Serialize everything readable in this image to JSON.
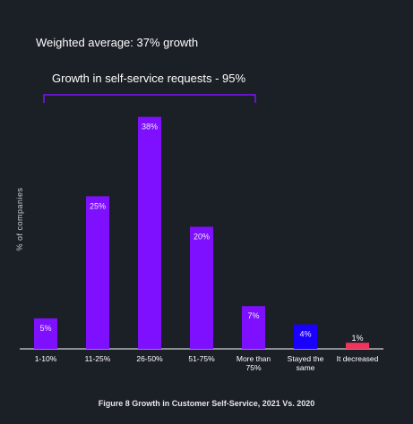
{
  "colors": {
    "background": "#1b1f26",
    "bar_purple": "#7f10ff",
    "bar_blue": "#1a00ff",
    "bar_pink": "#f0345e",
    "bracket": "#7f10ff",
    "text": "#ffffff"
  },
  "annotations": {
    "weighted_average": "Weighted average: 37% growth",
    "growth_requests": "Growth in self-service requests - 95%"
  },
  "caption": "Figure 8 Growth in Customer Self-Service, 2021 Vs. 2020",
  "chart_data": {
    "type": "bar",
    "title": "",
    "xlabel": "",
    "ylabel": "% of companies",
    "ylim": [
      0,
      40
    ],
    "grid": false,
    "categories": [
      "1-10%",
      "11-25%",
      "26-50%",
      "51-75%",
      "More than 75%",
      "Stayed the same",
      "It decreased"
    ],
    "category_lines": [
      [
        "1-10%"
      ],
      [
        "11-25%"
      ],
      [
        "26-50%"
      ],
      [
        "51-75%"
      ],
      [
        "More than",
        "75%"
      ],
      [
        "Stayed the",
        "same"
      ],
      [
        "It decreased"
      ]
    ],
    "values": [
      5,
      25,
      38,
      20,
      7,
      4,
      1
    ],
    "value_labels": [
      "5%",
      "25%",
      "38%",
      "20%",
      "7%",
      "4%",
      "1%"
    ],
    "bar_colors": [
      "#7f10ff",
      "#7f10ff",
      "#7f10ff",
      "#7f10ff",
      "#7f10ff",
      "#1a00ff",
      "#f0345e"
    ],
    "bracket_spans_categories": [
      "1-10%",
      "More than 75%"
    ]
  }
}
